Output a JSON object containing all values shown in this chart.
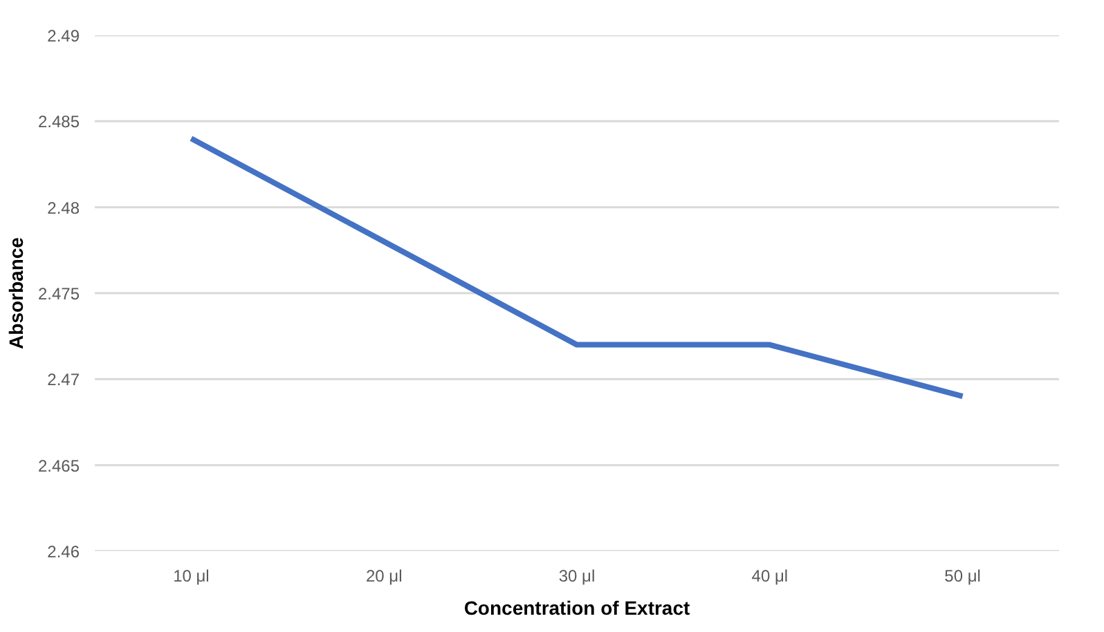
{
  "chart_data": {
    "type": "line",
    "xlabel": "Concentration of Extract",
    "ylabel": "Absorbance",
    "categories": [
      "10 μl",
      "20 μl",
      "30 μl",
      "40 μl",
      "50 μl"
    ],
    "series": [
      {
        "color": "#4472c4",
        "values": [
          2.484,
          2.478,
          2.472,
          2.472,
          2.469
        ]
      }
    ],
    "ylim": [
      2.46,
      2.49
    ],
    "yticks": [
      2.46,
      2.465,
      2.47,
      2.475,
      2.48,
      2.485,
      2.49
    ],
    "grid": "y",
    "marker": "none",
    "line_style": "solid"
  }
}
